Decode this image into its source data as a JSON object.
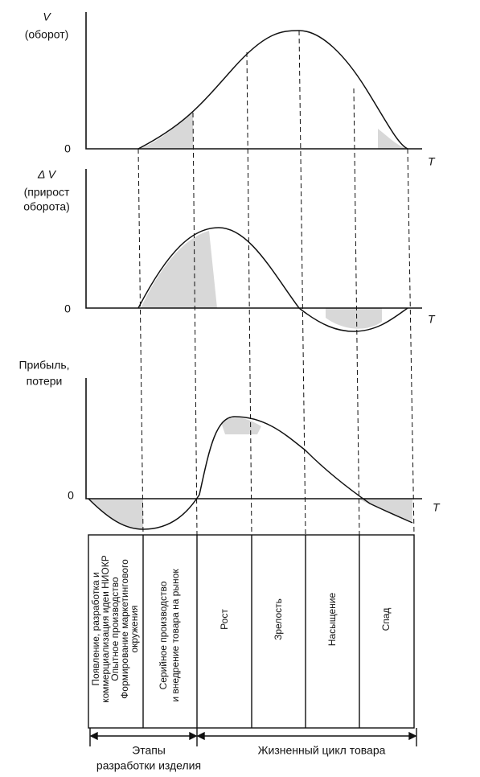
{
  "panels": [
    {
      "y_label": [
        "V",
        "(оборот)"
      ],
      "zero": "0",
      "t_label": "T"
    },
    {
      "y_label": [
        "Δ V",
        "(прирост",
        "оборота)"
      ],
      "zero": "0",
      "t_label": "T"
    },
    {
      "y_label": [
        "Прибыль,",
        "потери"
      ],
      "zero": "0",
      "t_label": "T"
    }
  ],
  "table": {
    "columns": [
      {
        "lines": [
          "Появление, разработка и",
          "коммерциализация идеи НИОКР",
          "Опытное производство",
          "Формирование маркетингового",
          "окружения"
        ]
      },
      {
        "lines": [
          "Серийное производство",
          "и внедрение товара на рынок"
        ]
      },
      {
        "lines": [
          "Рост"
        ]
      },
      {
        "lines": [
          "Зрелость"
        ]
      },
      {
        "lines": [
          "Насыщение"
        ]
      },
      {
        "lines": [
          "Спад"
        ]
      }
    ]
  },
  "bottom": {
    "stages": [
      "Этапы",
      "разработки изделия"
    ],
    "life_cycle": "Жизненный цикл товара"
  }
}
